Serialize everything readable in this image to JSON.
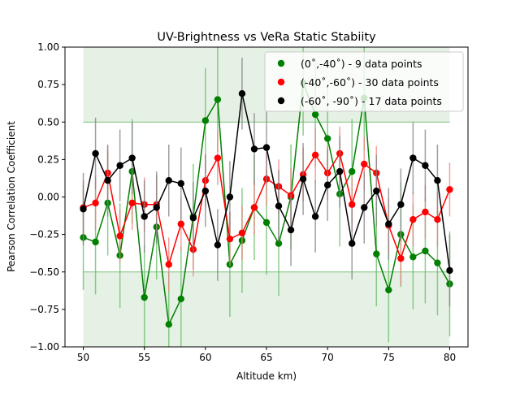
{
  "chart_data": {
    "type": "line",
    "title": "UV-Brightness vs VeRa Static Stabiity",
    "xlabel": "Altitude km)",
    "ylabel": "Pearson Correlation Coefficient",
    "xlim": [
      48.5,
      81.5
    ],
    "ylim": [
      -1.0,
      1.0
    ],
    "xticks": [
      50,
      55,
      60,
      65,
      70,
      75,
      80
    ],
    "yticks": [
      -1.0,
      -0.75,
      -0.5,
      -0.25,
      0.0,
      0.25,
      0.5,
      0.75,
      1.0
    ],
    "xtick_labels": [
      "50",
      "55",
      "60",
      "65",
      "70",
      "75",
      "80"
    ],
    "ytick_labels": [
      "−1.00",
      "−0.75",
      "−0.50",
      "−0.25",
      "0.00",
      "0.25",
      "0.50",
      "0.75",
      "1.00"
    ],
    "grid": false,
    "legend_position": "top-right",
    "significance_bands": [
      {
        "x_range": [
          50,
          80
        ],
        "y_range": [
          0.5,
          1.0
        ],
        "color": "#d5e8d4",
        "line_color": "#7fbf7f"
      },
      {
        "x_range": [
          50,
          80
        ],
        "y_range": [
          -1.0,
          -0.5
        ],
        "color": "#d5e8d4",
        "line_color": "#7fbf7f"
      }
    ],
    "x": [
      50,
      51,
      52,
      53,
      54,
      55,
      56,
      57,
      58,
      59,
      60,
      61,
      62,
      63,
      64,
      65,
      66,
      67,
      68,
      69,
      70,
      71,
      72,
      73,
      74,
      75,
      76,
      77,
      78,
      79,
      80
    ],
    "series": [
      {
        "name": "(0˚,-40˚) - 9 data points",
        "color": "#008000",
        "errorbar_color": "#66bb66",
        "values": [
          -0.27,
          -0.3,
          -0.04,
          -0.39,
          0.17,
          -0.67,
          -0.2,
          -0.85,
          -0.68,
          -0.13,
          0.51,
          0.65,
          -0.45,
          -0.29,
          -0.07,
          -0.17,
          -0.31,
          0.0,
          0.76,
          0.55,
          0.39,
          0.02,
          0.17,
          0.66,
          -0.38,
          -0.62,
          -0.25,
          -0.4,
          -0.36,
          -0.44,
          -0.58
        ],
        "errors": [
          0.35,
          0.35,
          0.35,
          0.35,
          0.35,
          0.35,
          0.35,
          0.35,
          0.35,
          0.35,
          0.35,
          0.35,
          0.35,
          0.35,
          0.35,
          0.35,
          0.35,
          0.35,
          0.35,
          0.35,
          0.35,
          0.35,
          0.35,
          0.35,
          0.35,
          0.35,
          0.35,
          0.35,
          0.35,
          0.35,
          0.35
        ]
      },
      {
        "name": "(-40˚,-60˚) - 30 data points",
        "color": "#ff0000",
        "errorbar_color": "#f08080",
        "values": [
          -0.07,
          -0.04,
          0.16,
          -0.26,
          -0.04,
          -0.05,
          -0.05,
          -0.45,
          -0.18,
          -0.35,
          0.11,
          0.26,
          -0.28,
          -0.24,
          -0.07,
          0.12,
          0.07,
          0.01,
          0.15,
          0.28,
          0.16,
          0.29,
          -0.05,
          0.22,
          0.16,
          -0.19,
          -0.41,
          -0.15,
          -0.1,
          -0.15,
          0.05
        ],
        "errors": [
          0.18,
          0.18,
          0.18,
          0.18,
          0.18,
          0.18,
          0.18,
          0.18,
          0.18,
          0.18,
          0.18,
          0.18,
          0.18,
          0.18,
          0.18,
          0.18,
          0.18,
          0.18,
          0.18,
          0.18,
          0.18,
          0.18,
          0.18,
          0.18,
          0.18,
          0.18,
          0.18,
          0.18,
          0.18,
          0.18,
          0.18
        ]
      },
      {
        "name": "(-60˚, -90˚) - 17 data points",
        "color": "#000000",
        "errorbar_color": "#808080",
        "values": [
          -0.08,
          0.29,
          0.11,
          0.21,
          0.26,
          -0.13,
          -0.07,
          0.11,
          0.09,
          -0.14,
          0.04,
          -0.32,
          0.0,
          0.69,
          0.32,
          0.33,
          -0.06,
          -0.22,
          0.12,
          -0.13,
          0.08,
          0.17,
          -0.31,
          -0.07,
          0.04,
          -0.18,
          -0.05,
          0.26,
          0.21,
          0.11,
          -0.49
        ],
        "errors": [
          0.24,
          0.24,
          0.24,
          0.24,
          0.24,
          0.24,
          0.24,
          0.24,
          0.24,
          0.24,
          0.24,
          0.24,
          0.24,
          0.24,
          0.24,
          0.24,
          0.24,
          0.24,
          0.24,
          0.24,
          0.24,
          0.24,
          0.24,
          0.24,
          0.24,
          0.24,
          0.24,
          0.24,
          0.24,
          0.24,
          0.24
        ]
      }
    ]
  }
}
